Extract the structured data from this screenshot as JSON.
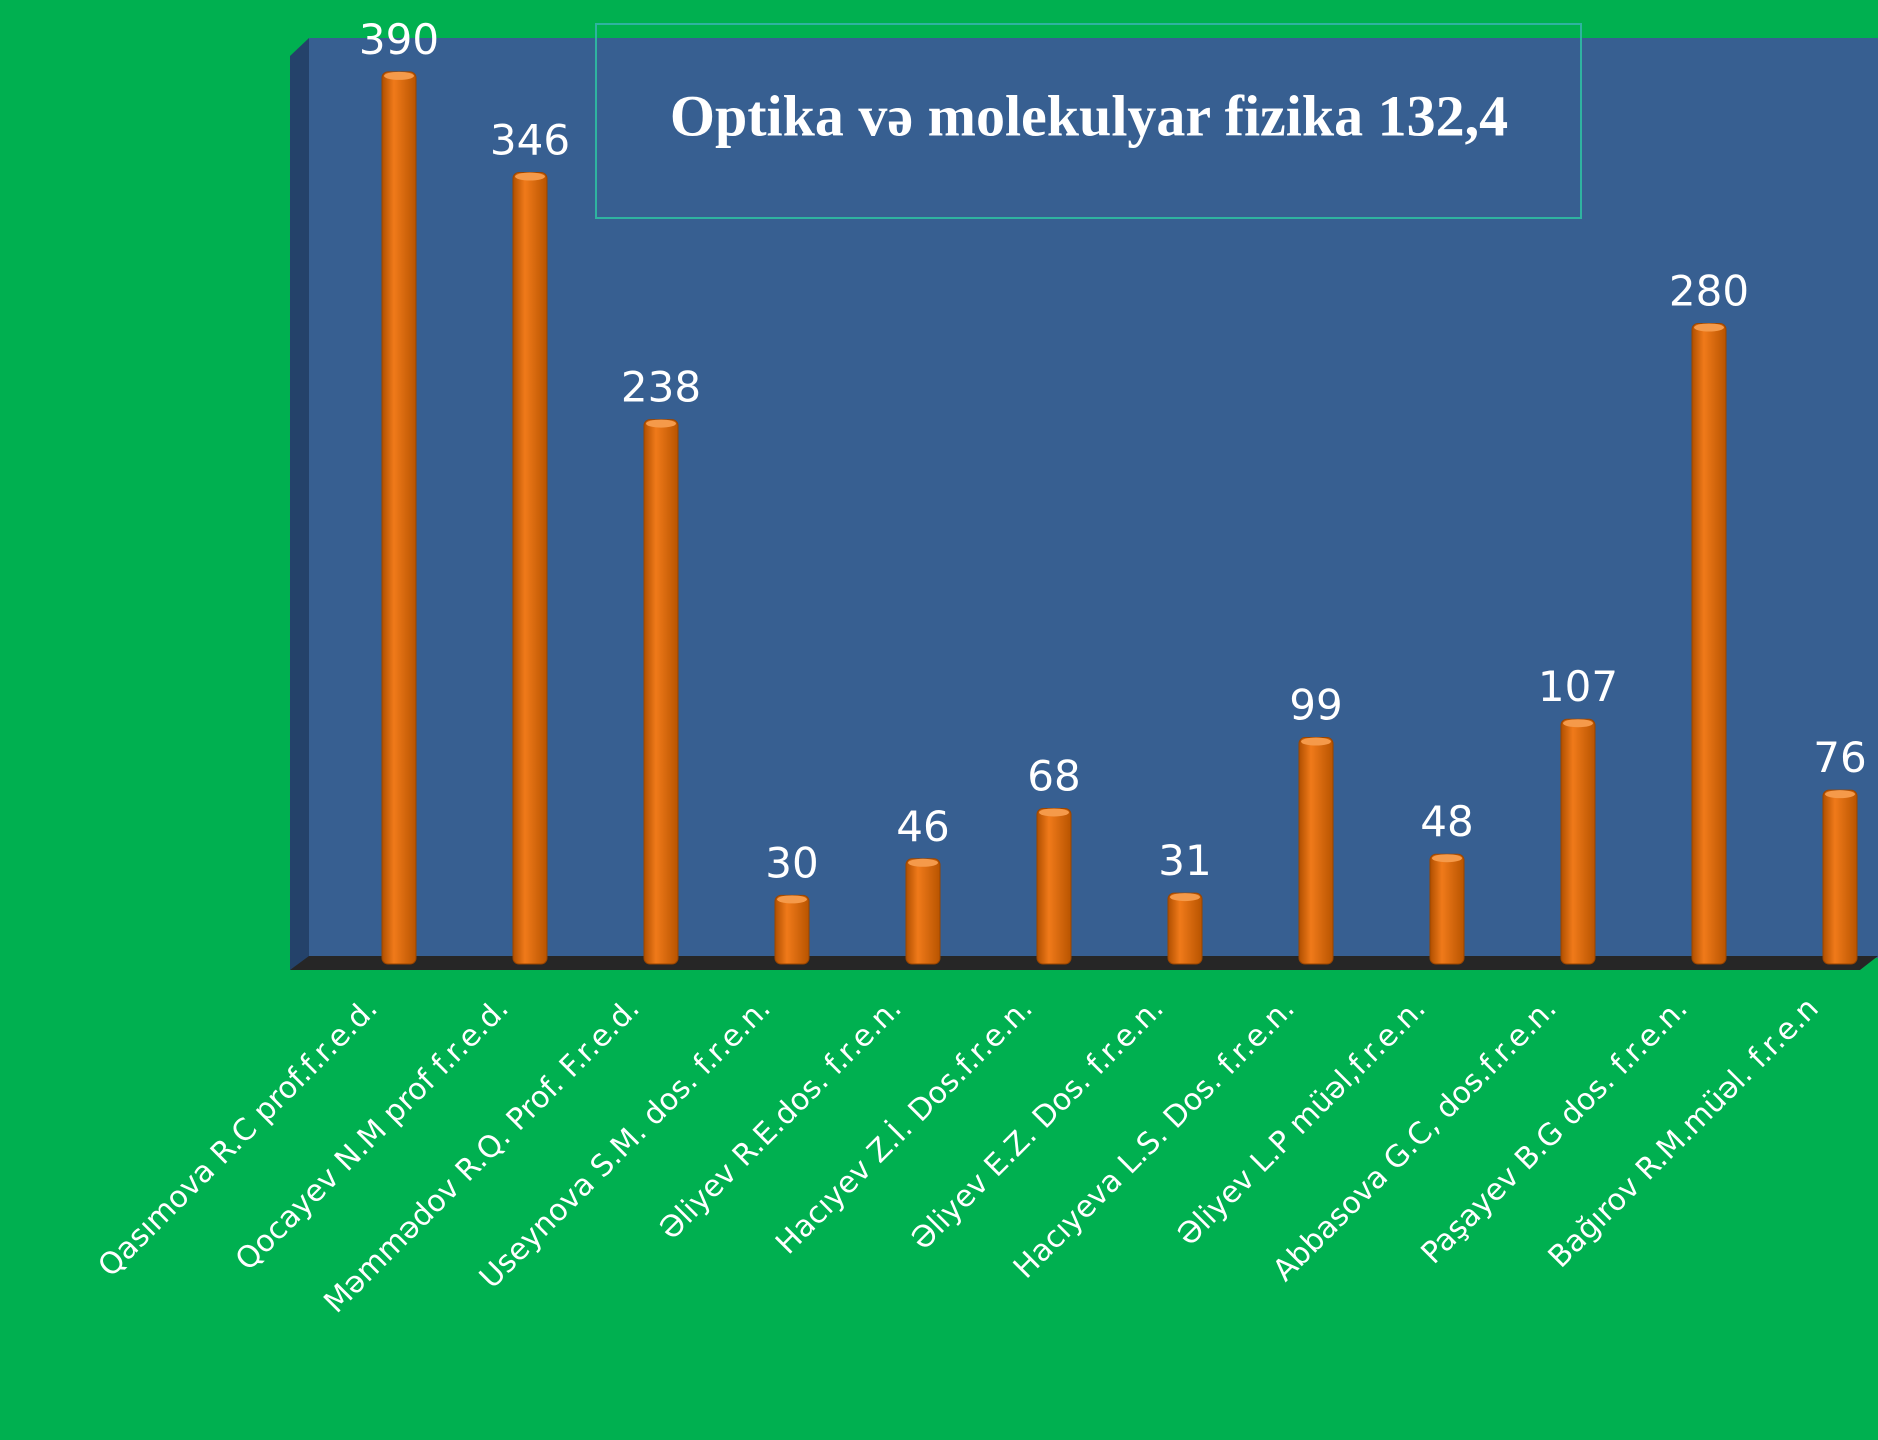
{
  "chart_data": {
    "type": "bar",
    "title": "Optika və molekulyar fizika 132,4",
    "categories": [
      "Qasımova R.C prof.f.r.e.d.",
      "Qocayev N.M prof f.r.e.d.",
      "Məmmədov R.Q. Prof. F.r.e.d.",
      "Useynova S.M. dos. f.r.e.n.",
      "Əliyev R.E.dos. f.r.e.n.",
      "Hacıyev Z.İ. Dos.f.r.e.n.",
      "Əliyev E.Z. Dos. f.r.e.n.",
      "Hacıyeva L.S. Dos. f.r.e.n.",
      "Əliyev  L.P müəl,f.r.e.n.",
      "Abbasova  G.C, dos.f.r.e.n.",
      "Paşayev B.G  dos. f.r.e.n.",
      "Bağırov R.M.müəl. f.r.e.n"
    ],
    "values": [
      390,
      346,
      238,
      30,
      46,
      68,
      31,
      99,
      48,
      107,
      280,
      76
    ],
    "color": "#e36c0a",
    "ylim": [
      0,
      400
    ]
  }
}
